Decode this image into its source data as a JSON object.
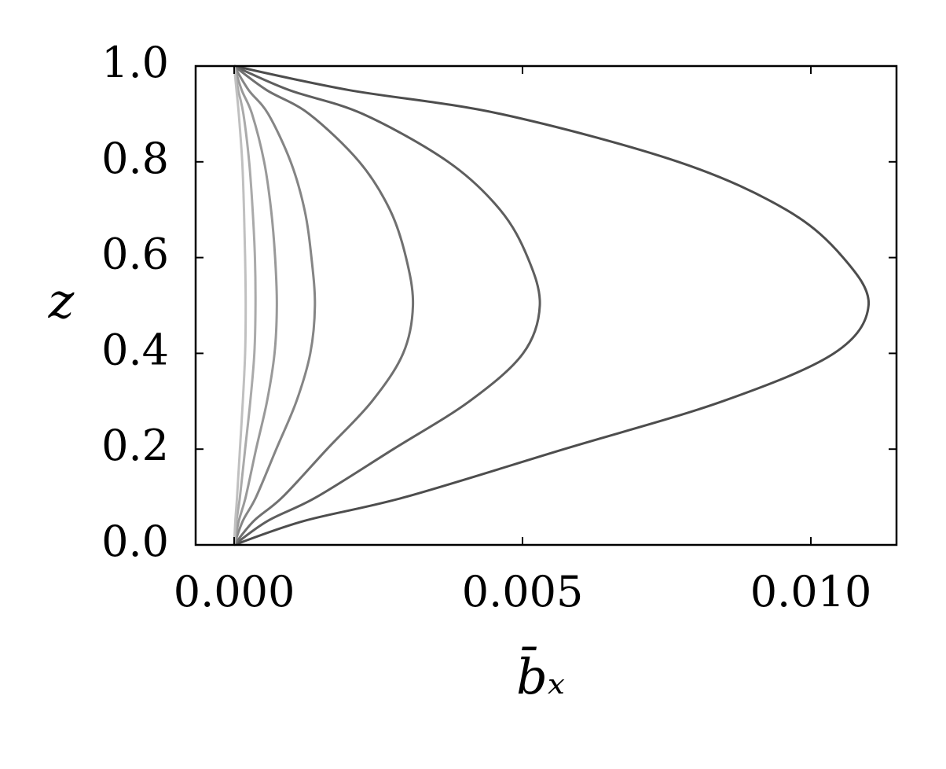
{
  "chart_data": {
    "type": "line",
    "xlabel": "b̄ₓ",
    "ylabel": "z",
    "y": [
      0,
      0.05,
      0.1,
      0.2,
      0.3,
      0.4,
      0.5,
      0.6,
      0.7,
      0.8,
      0.9,
      0.95,
      1
    ],
    "series": [
      {
        "color": "#4d4d4d",
        "x": [
          0,
          0.00121,
          0.00297,
          0.00572,
          0.00847,
          0.0104,
          0.011,
          0.01056,
          0.00957,
          0.0077,
          0.00462,
          0.00198,
          0
        ]
      },
      {
        "color": "#5e5e5e",
        "x": [
          0,
          0.00058,
          0.00143,
          0.00276,
          0.00408,
          0.00501,
          0.0053,
          0.00509,
          0.00461,
          0.00371,
          0.00223,
          0.00095,
          0
        ]
      },
      {
        "color": "#707070",
        "x": [
          0,
          0.00034,
          0.00084,
          0.00161,
          0.00239,
          0.00293,
          0.0031,
          0.00298,
          0.0027,
          0.00217,
          0.0013,
          0.00056,
          0
        ]
      },
      {
        "color": "#858585",
        "x": [
          0,
          0.00015,
          0.00038,
          0.00073,
          0.00108,
          0.00132,
          0.0014,
          0.00134,
          0.00122,
          0.00098,
          0.00059,
          0.00025,
          0
        ]
      },
      {
        "color": "#999999",
        "x": [
          0,
          8e-05,
          0.0002,
          0.00038,
          0.00057,
          0.0007,
          0.00074,
          0.00071,
          0.00064,
          0.00052,
          0.00031,
          0.00013,
          0
        ]
      },
      {
        "color": "#aaaaaa",
        "x": [
          0,
          4e-05,
          0.0001,
          0.00019,
          0.00028,
          0.00035,
          0.00037,
          0.00036,
          0.00032,
          0.00026,
          0.00016,
          7e-05,
          0
        ]
      },
      {
        "color": "#c0c0c0",
        "x": [
          0,
          2e-05,
          5e-05,
          0.0001,
          0.00015,
          0.00019,
          0.0002,
          0.00019,
          0.00017,
          0.00014,
          8e-05,
          4e-05,
          0
        ]
      }
    ],
    "xlim": [
      -0.000668,
      0.011485
    ],
    "ylim": [
      0,
      1
    ],
    "xticks": [
      {
        "value": 0,
        "label": "0.000"
      },
      {
        "value": 0.005,
        "label": "0.005"
      },
      {
        "value": 0.01,
        "label": "0.010"
      }
    ],
    "yticks": [
      {
        "value": 0,
        "label": "0.0"
      },
      {
        "value": 0.2,
        "label": "0.2"
      },
      {
        "value": 0.4,
        "label": "0.4"
      },
      {
        "value": 0.6,
        "label": "0.6"
      },
      {
        "value": 0.8,
        "label": "0.8"
      },
      {
        "value": 1,
        "label": "1.0"
      }
    ]
  }
}
